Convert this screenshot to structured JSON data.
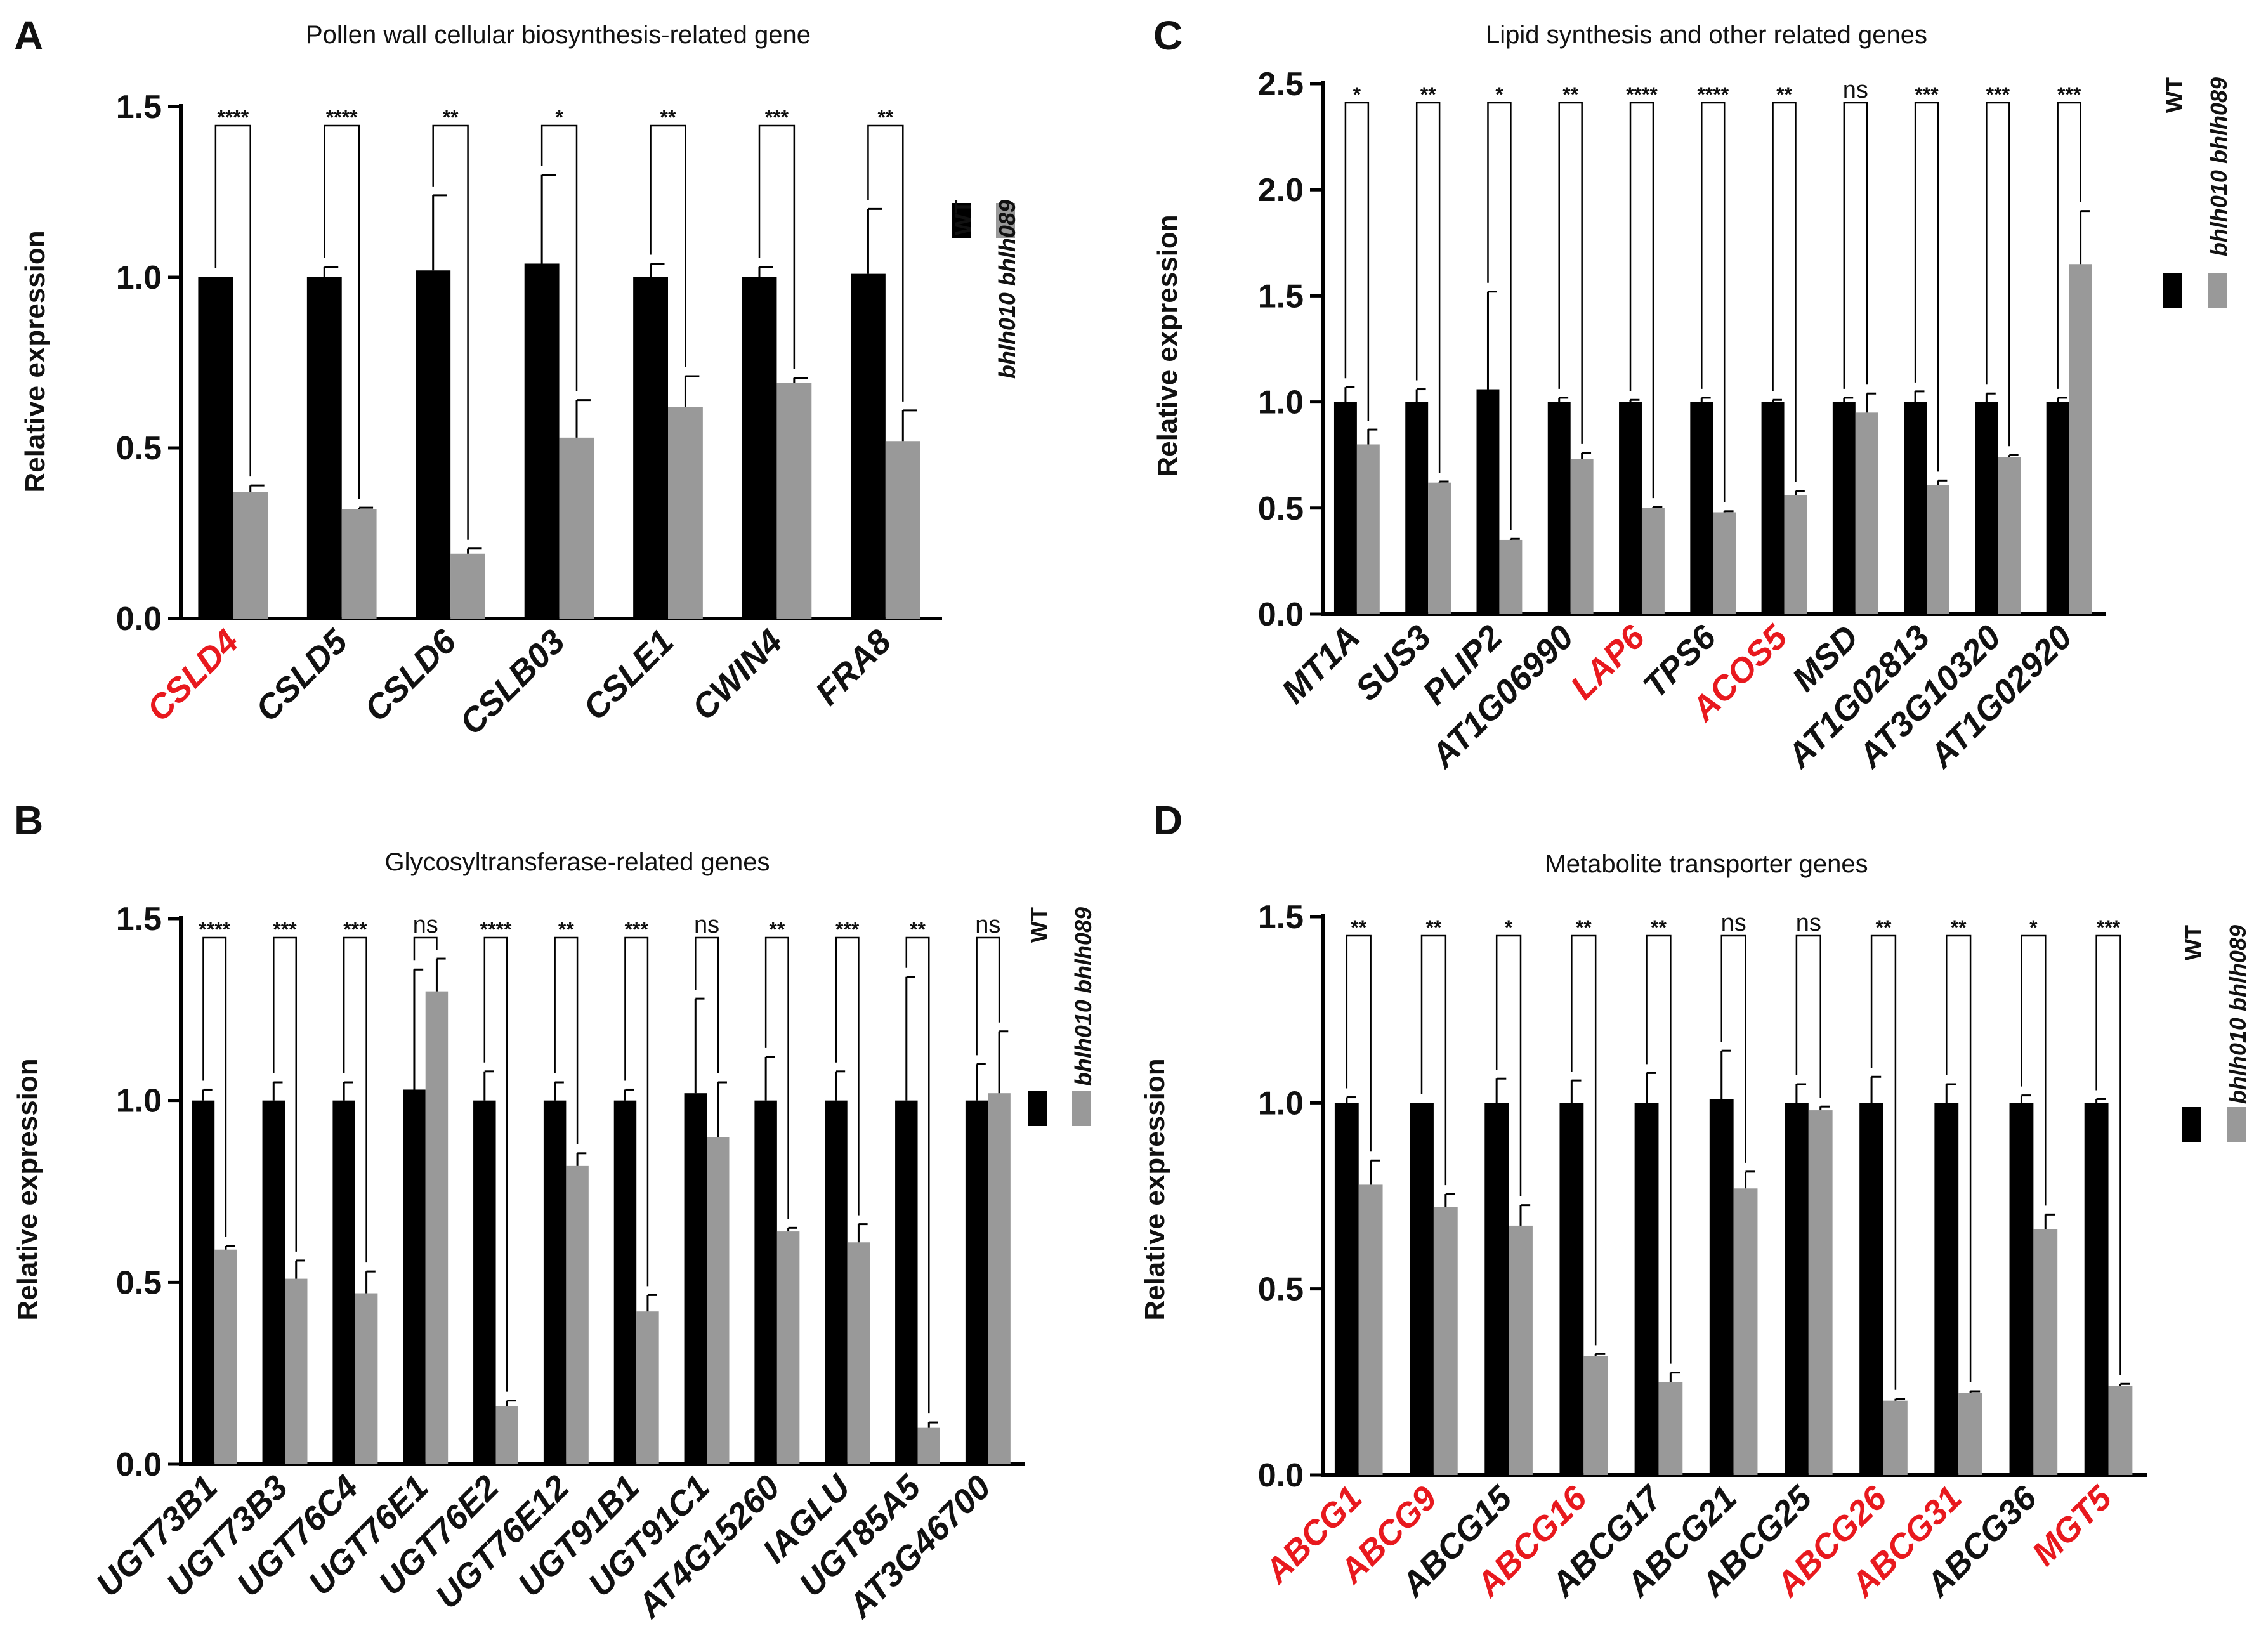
{
  "chart_data": [
    {
      "panel": "A",
      "type": "bar",
      "title": "Pollen wall cellular biosynthesis-related gene",
      "ylabel": "Relative expression",
      "ylim": [
        0,
        1.5
      ],
      "yticks": [
        "0.0",
        "0.5",
        "1.0",
        "1.5"
      ],
      "categories": [
        "CSLD4",
        "CSLD5",
        "CSLD6",
        "CSLB03",
        "CSLE1",
        "CWIN4",
        "FRA8"
      ],
      "highlighted": [
        "CSLD4"
      ],
      "series": [
        {
          "name": "WT",
          "color": "#000000",
          "values": [
            1.0,
            1.0,
            1.02,
            1.04,
            1.0,
            1.0,
            1.01
          ],
          "errors": [
            0.0,
            0.03,
            0.22,
            0.26,
            0.04,
            0.03,
            0.19
          ]
        },
        {
          "name": "bhlh010 bhlh089",
          "color": "#999999",
          "values": [
            0.37,
            0.32,
            0.19,
            0.53,
            0.62,
            0.69,
            0.52
          ],
          "errors": [
            0.02,
            0.005,
            0.015,
            0.11,
            0.09,
            0.015,
            0.09
          ]
        }
      ],
      "significance": [
        "****",
        "****",
        "**",
        "*",
        "**",
        "***",
        "**"
      ],
      "legend_position": "right"
    },
    {
      "panel": "B",
      "type": "bar",
      "title": "Glycosyltransferase-related genes",
      "ylabel": "Relative expression",
      "ylim": [
        0,
        1.5
      ],
      "yticks": [
        "0.0",
        "0.5",
        "1.0",
        "1.5"
      ],
      "categories": [
        "UGT73B1",
        "UGT73B3",
        "UGT76C4",
        "UGT76E1",
        "UGT76E2",
        "UGT76E12",
        "UGT91B1",
        "UGT91C1",
        "AT4G15260",
        "IAGLU",
        "UGT85A5",
        "AT3G46700"
      ],
      "highlighted": [],
      "series": [
        {
          "name": "WT",
          "color": "#000000",
          "values": [
            1.0,
            1.0,
            1.0,
            1.03,
            1.0,
            1.0,
            1.0,
            1.02,
            1.0,
            1.0,
            1.0,
            1.0
          ],
          "errors": [
            0.03,
            0.05,
            0.05,
            0.33,
            0.08,
            0.05,
            0.03,
            0.26,
            0.12,
            0.08,
            0.34,
            0.1
          ]
        },
        {
          "name": "bhlh010 bhlh089",
          "color": "#999999",
          "values": [
            0.59,
            0.51,
            0.47,
            1.3,
            0.16,
            0.82,
            0.42,
            0.9,
            0.64,
            0.61,
            0.1,
            1.02
          ],
          "errors": [
            0.01,
            0.05,
            0.06,
            0.09,
            0.015,
            0.035,
            0.045,
            0.15,
            0.01,
            0.05,
            0.015,
            0.17
          ]
        }
      ],
      "significance": [
        "****",
        "***",
        "***",
        "ns",
        "****",
        "**",
        "***",
        "ns",
        "**",
        "***",
        "**",
        "ns"
      ],
      "legend_position": "right"
    },
    {
      "panel": "C",
      "type": "bar",
      "title": "Lipid synthesis and other related genes",
      "ylabel": "Relative expression",
      "ylim": [
        0,
        2.5
      ],
      "yticks": [
        "0.0",
        "0.5",
        "1.0",
        "1.5",
        "2.0",
        "2.5"
      ],
      "categories": [
        "MT1A",
        "SUS3",
        "PLIP2",
        "AT1G06990",
        "LAP6",
        "TPS6",
        "ACOS5",
        "MSD",
        "AT1G02813",
        "AT3G10320",
        "AT1G02920"
      ],
      "highlighted": [
        "LAP6",
        "ACOS5"
      ],
      "series": [
        {
          "name": "WT",
          "color": "#000000",
          "values": [
            1.0,
            1.0,
            1.06,
            1.0,
            1.0,
            1.0,
            1.0,
            1.0,
            1.0,
            1.0,
            1.0
          ],
          "errors": [
            0.07,
            0.06,
            0.46,
            0.02,
            0.01,
            0.02,
            0.01,
            0.02,
            0.05,
            0.04,
            0.02
          ]
        },
        {
          "name": "bhlh010 bhlh089",
          "color": "#999999",
          "values": [
            0.8,
            0.62,
            0.35,
            0.73,
            0.5,
            0.48,
            0.56,
            0.95,
            0.61,
            0.74,
            1.65
          ],
          "errors": [
            0.07,
            0.005,
            0.005,
            0.03,
            0.005,
            0.005,
            0.02,
            0.09,
            0.02,
            0.01,
            0.25
          ]
        }
      ],
      "significance": [
        "*",
        "**",
        "*",
        "**",
        "****",
        "****",
        "**",
        "ns",
        "***",
        "***",
        "***"
      ],
      "legend_position": "right"
    },
    {
      "panel": "D",
      "type": "bar",
      "title": "Metabolite transporter genes",
      "ylabel": "Relative expression",
      "ylim": [
        0,
        1.5
      ],
      "yticks": [
        "0.0",
        "0.5",
        "1.0",
        "1.5"
      ],
      "categories": [
        "ABCG1",
        "ABCG9",
        "ABCG15",
        "ABCG16",
        "ABCG17",
        "ABCG21",
        "ABCG25",
        "ABCG26",
        "ABCG31",
        "ABCG36",
        "MGT5"
      ],
      "highlighted": [
        "ABCG1",
        "ABCG9",
        "ABCG16",
        "ABCG26",
        "ABCG31",
        "MGT5"
      ],
      "series": [
        {
          "name": "WT",
          "color": "#000000",
          "values": [
            1.0,
            1.0,
            1.0,
            1.0,
            1.0,
            1.01,
            1.0,
            1.0,
            1.0,
            1.0,
            1.0
          ],
          "errors": [
            0.015,
            0.0,
            0.065,
            0.06,
            0.08,
            0.13,
            0.05,
            0.07,
            0.05,
            0.02,
            0.01
          ]
        },
        {
          "name": "bhlh010 bhlh089",
          "color": "#999999",
          "values": [
            0.78,
            0.72,
            0.67,
            0.32,
            0.25,
            0.77,
            0.98,
            0.2,
            0.22,
            0.66,
            0.24
          ],
          "errors": [
            0.065,
            0.035,
            0.055,
            0.005,
            0.025,
            0.045,
            0.01,
            0.005,
            0.005,
            0.04,
            0.005
          ]
        }
      ],
      "significance": [
        "**",
        "**",
        "*",
        "**",
        "**",
        "ns",
        "ns",
        "**",
        "**",
        "*",
        "***"
      ],
      "legend_position": "right"
    }
  ]
}
